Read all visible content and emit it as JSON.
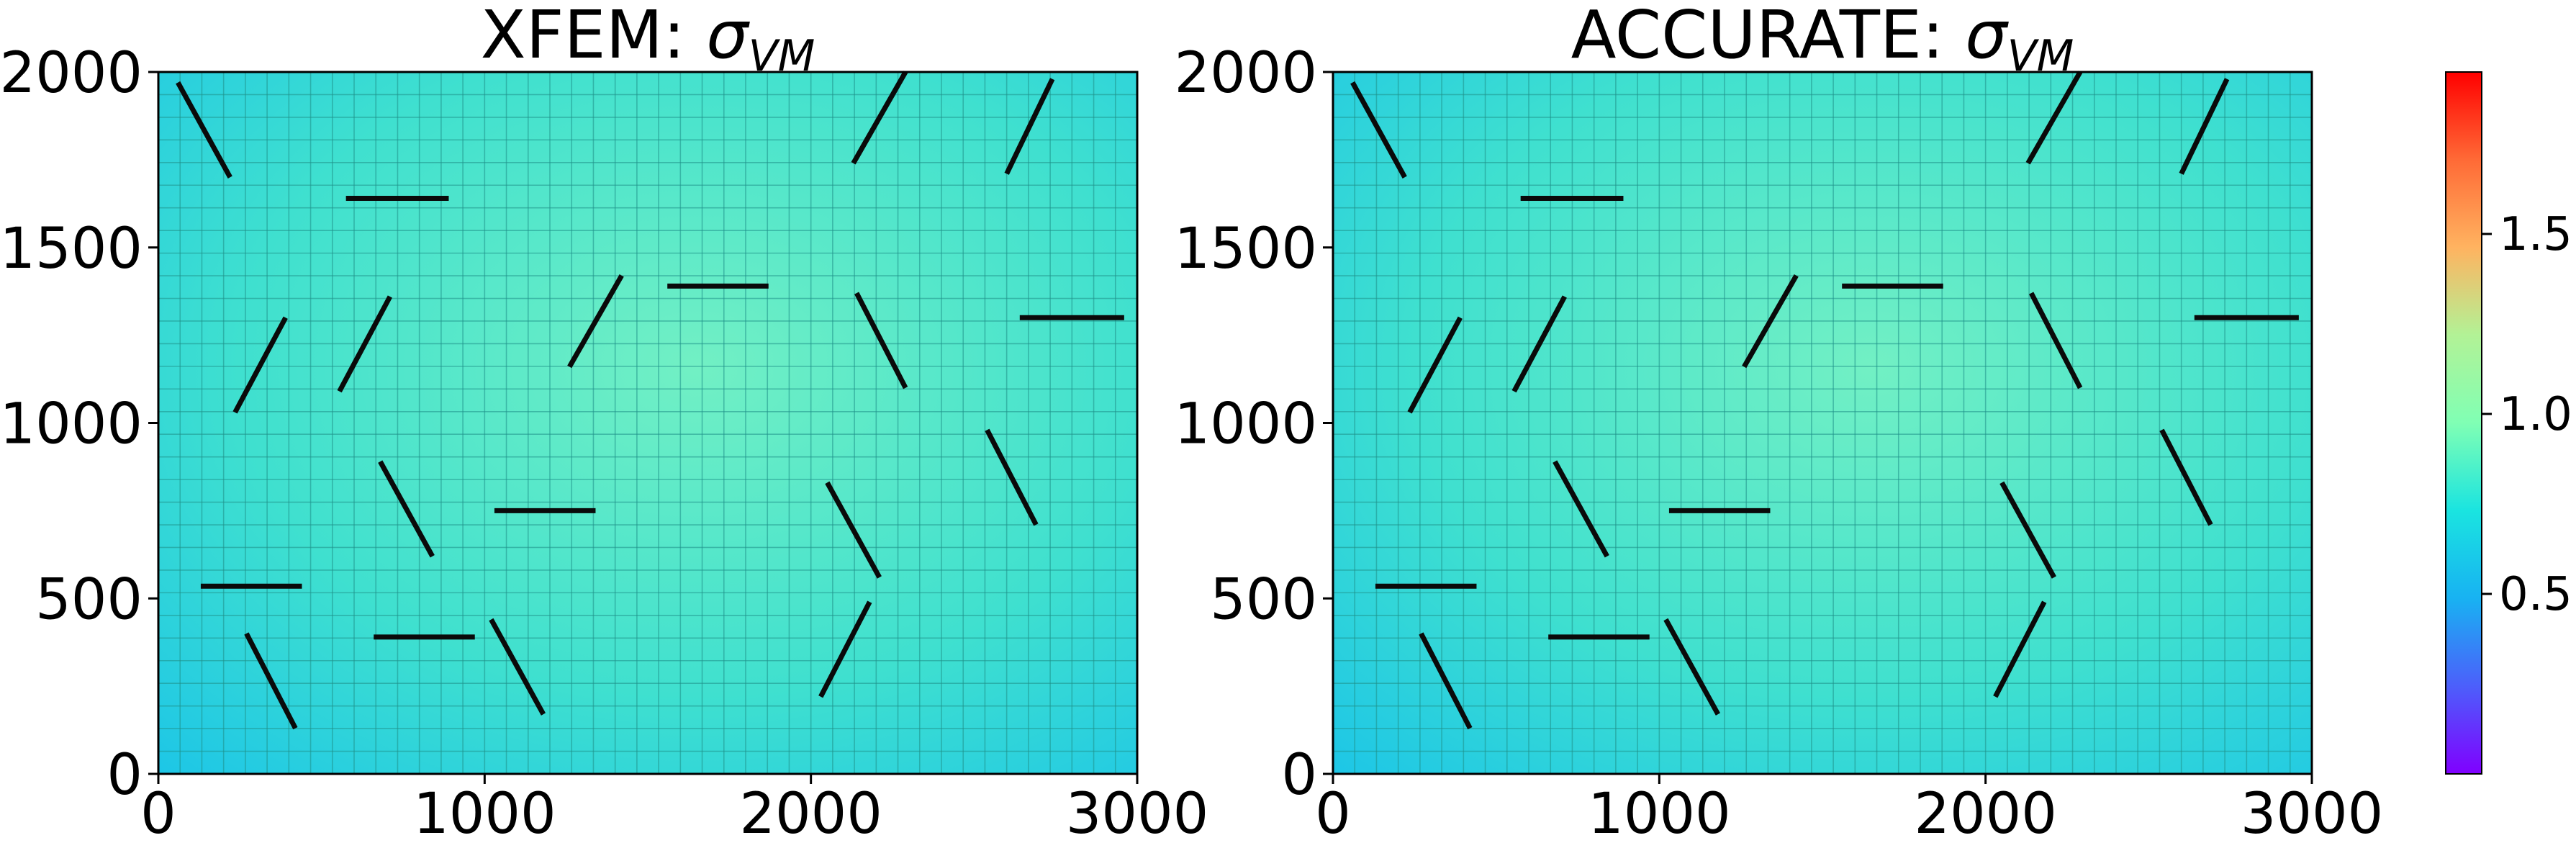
{
  "colors": {
    "field_light": "#72f0c4",
    "field_mid": "#3fe0cf",
    "field_dark": "#18c2ea",
    "mesh_line": "#1f8f88",
    "crack": "#0a0a0a"
  },
  "chart_data": [
    {
      "type": "heatmap",
      "title_prefix": "XFEM: ",
      "title_symbol": "σ",
      "title_subscript": "VM",
      "xlim": [
        0,
        3000
      ],
      "ylim": [
        0,
        2000
      ],
      "x_ticks": [
        "0",
        "1000",
        "2000",
        "3000"
      ],
      "y_ticks": [
        "0",
        "500",
        "1000",
        "1500",
        "2000"
      ],
      "grid": true,
      "mesh_divisions": [
        45,
        31
      ],
      "cracks": [
        [
          [
            60,
            1970
          ],
          [
            220,
            1700
          ]
        ],
        [
          [
            575,
            1640
          ],
          [
            890,
            1640
          ]
        ],
        [
          [
            2130,
            1740
          ],
          [
            2290,
            2000
          ]
        ],
        [
          [
            2600,
            1710
          ],
          [
            2740,
            1980
          ]
        ],
        [
          [
            235,
            1030
          ],
          [
            390,
            1300
          ]
        ],
        [
          [
            555,
            1090
          ],
          [
            710,
            1360
          ]
        ],
        [
          [
            1260,
            1160
          ],
          [
            1420,
            1420
          ]
        ],
        [
          [
            1560,
            1390
          ],
          [
            1870,
            1390
          ]
        ],
        [
          [
            2140,
            1370
          ],
          [
            2290,
            1100
          ]
        ],
        [
          [
            2640,
            1300
          ],
          [
            2960,
            1300
          ]
        ],
        [
          [
            680,
            890
          ],
          [
            840,
            620
          ]
        ],
        [
          [
            1030,
            750
          ],
          [
            1340,
            750
          ]
        ],
        [
          [
            2050,
            830
          ],
          [
            2210,
            560
          ]
        ],
        [
          [
            2540,
            980
          ],
          [
            2690,
            710
          ]
        ],
        [
          [
            130,
            535
          ],
          [
            440,
            535
          ]
        ],
        [
          [
            270,
            400
          ],
          [
            420,
            130
          ]
        ],
        [
          [
            660,
            390
          ],
          [
            970,
            390
          ]
        ],
        [
          [
            1020,
            440
          ],
          [
            1180,
            170
          ]
        ],
        [
          [
            2030,
            220
          ],
          [
            2180,
            490
          ]
        ]
      ]
    },
    {
      "type": "heatmap",
      "title_prefix": "ACCURATE: ",
      "title_symbol": "σ",
      "title_subscript": "VM",
      "xlim": [
        0,
        3000
      ],
      "ylim": [
        0,
        2000
      ],
      "x_ticks": [
        "0",
        "1000",
        "2000",
        "3000"
      ],
      "y_ticks": [
        "0",
        "500",
        "1000",
        "1500",
        "2000"
      ],
      "grid": true,
      "mesh_divisions": [
        45,
        31
      ],
      "cracks": [
        [
          [
            60,
            1970
          ],
          [
            220,
            1700
          ]
        ],
        [
          [
            575,
            1640
          ],
          [
            890,
            1640
          ]
        ],
        [
          [
            2130,
            1740
          ],
          [
            2290,
            2000
          ]
        ],
        [
          [
            2600,
            1710
          ],
          [
            2740,
            1980
          ]
        ],
        [
          [
            235,
            1030
          ],
          [
            390,
            1300
          ]
        ],
        [
          [
            555,
            1090
          ],
          [
            710,
            1360
          ]
        ],
        [
          [
            1260,
            1160
          ],
          [
            1420,
            1420
          ]
        ],
        [
          [
            1560,
            1390
          ],
          [
            1870,
            1390
          ]
        ],
        [
          [
            2140,
            1370
          ],
          [
            2290,
            1100
          ]
        ],
        [
          [
            2640,
            1300
          ],
          [
            2960,
            1300
          ]
        ],
        [
          [
            680,
            890
          ],
          [
            840,
            620
          ]
        ],
        [
          [
            1030,
            750
          ],
          [
            1340,
            750
          ]
        ],
        [
          [
            2050,
            830
          ],
          [
            2210,
            560
          ]
        ],
        [
          [
            2540,
            980
          ],
          [
            2690,
            710
          ]
        ],
        [
          [
            130,
            535
          ],
          [
            440,
            535
          ]
        ],
        [
          [
            270,
            400
          ],
          [
            420,
            130
          ]
        ],
        [
          [
            660,
            390
          ],
          [
            970,
            390
          ]
        ],
        [
          [
            1020,
            440
          ],
          [
            1180,
            170
          ]
        ],
        [
          [
            2030,
            220
          ],
          [
            2180,
            490
          ]
        ]
      ]
    }
  ],
  "colorbar": {
    "colormap": "rainbow",
    "range": [
      0.0,
      1.95
    ],
    "ticks": [
      "0.5",
      "1.0",
      "1.5"
    ],
    "tick_values": [
      0.5,
      1.0,
      1.5
    ]
  }
}
